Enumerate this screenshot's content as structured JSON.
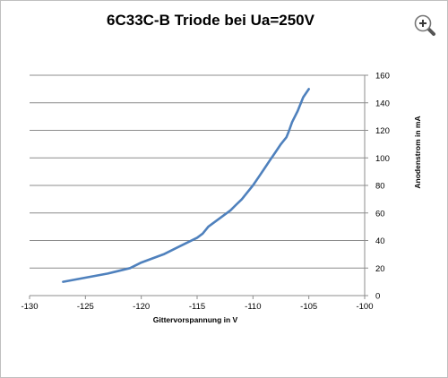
{
  "chart_data": {
    "type": "line",
    "title": "6C33C-B Triode bei Ua=250V",
    "xlabel": "Gittervorspannung in V",
    "ylabel": "Anodenstrom in mA",
    "xlim": [
      -130,
      -100
    ],
    "ylim": [
      0,
      160
    ],
    "xticks": [
      -130,
      -125,
      -120,
      -115,
      -110,
      -105,
      -100
    ],
    "yticks": [
      0,
      20,
      40,
      60,
      80,
      100,
      120,
      140,
      160
    ],
    "yaxis_position": "right",
    "grid": "horizontal",
    "legend": "none",
    "line_color": "#4f81bd",
    "series": [
      {
        "x": [
          -127,
          -125,
          -123,
          -121,
          -120,
          -119,
          -118,
          -117,
          -116,
          -115,
          -114.5,
          -114,
          -113,
          -112,
          -111.5,
          -111,
          -110.5,
          -110,
          -109.5,
          -109,
          -108.5,
          -108,
          -107.5,
          -107,
          -106.8,
          -106.5,
          -106,
          -105.5,
          -105
        ],
        "y": [
          10,
          13,
          16,
          20,
          24,
          27,
          30,
          34,
          38,
          42,
          45,
          50,
          56,
          62,
          66,
          70,
          75,
          80,
          86,
          92,
          98,
          104,
          110,
          115,
          119,
          126,
          134,
          144,
          150
        ]
      }
    ]
  },
  "icons": {
    "zoom": "magnifier-zoom-in-icon"
  }
}
